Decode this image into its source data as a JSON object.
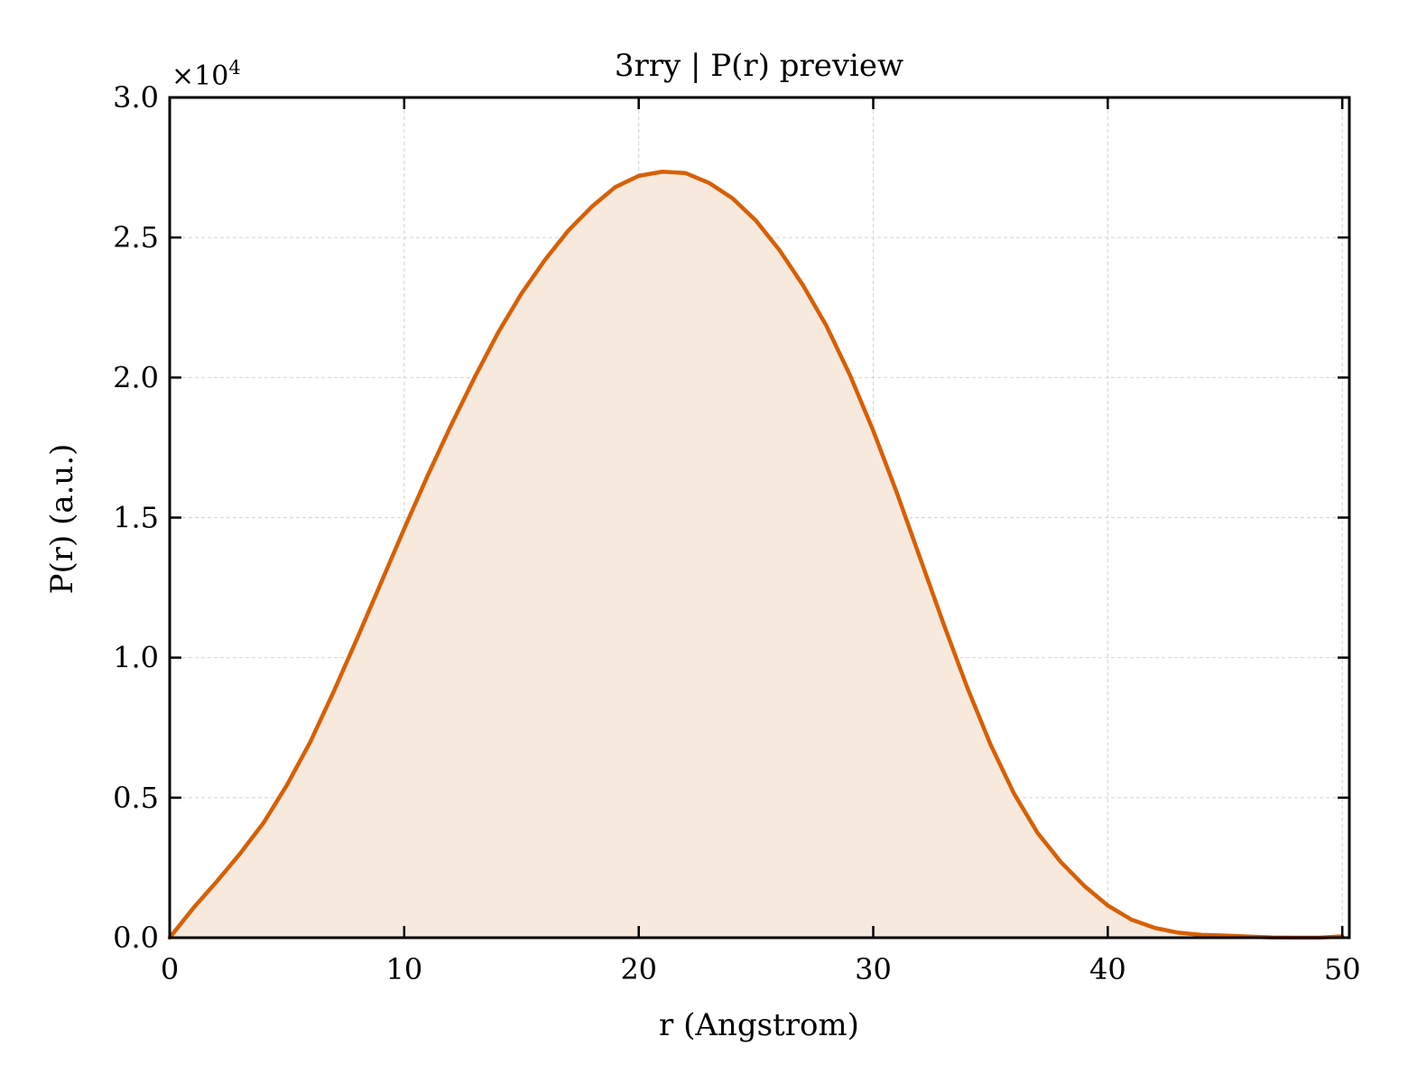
{
  "chart_data": {
    "type": "area",
    "title": "3rry | P(r) preview",
    "xlabel": "r (Angstrom)",
    "ylabel": "P(r) (a.u.)",
    "y_multiplier": "×10",
    "y_multiplier_exponent": "4",
    "xlim": [
      0,
      50.3
    ],
    "ylim": [
      0,
      30000
    ],
    "xticks": [
      0,
      10,
      20,
      30,
      40,
      50
    ],
    "xtick_labels": [
      "0",
      "10",
      "20",
      "30",
      "40",
      "50"
    ],
    "yticks": [
      0,
      5000,
      10000,
      15000,
      20000,
      25000,
      30000
    ],
    "ytick_labels": [
      "0.0",
      "0.5",
      "1.0",
      "1.5",
      "2.0",
      "2.5",
      "3.0"
    ],
    "grid": true,
    "line_color": "#d95f02",
    "fill_color": "#f8e9df",
    "series": [
      {
        "x": [
          0,
          1,
          2,
          3,
          4,
          5,
          6,
          7,
          8,
          9,
          10,
          11,
          12,
          13,
          14,
          15,
          16,
          17,
          18,
          19,
          20,
          21,
          22,
          23,
          24,
          25,
          26,
          27,
          28,
          29,
          30,
          31,
          32,
          33,
          34,
          35,
          36,
          37,
          38,
          39,
          40,
          41,
          42,
          43,
          44,
          45,
          46,
          47,
          48,
          49,
          50
        ],
        "y": [
          0,
          1050,
          2000,
          3000,
          4100,
          5450,
          7000,
          8800,
          10700,
          12650,
          14600,
          16500,
          18300,
          20000,
          21600,
          23000,
          24200,
          25250,
          26100,
          26800,
          27200,
          27350,
          27300,
          26950,
          26400,
          25600,
          24550,
          23300,
          21850,
          20100,
          18100,
          15900,
          13550,
          11200,
          8950,
          6900,
          5150,
          3750,
          2700,
          1850,
          1150,
          650,
          350,
          180,
          100,
          75,
          40,
          10,
          0,
          0,
          50
        ]
      }
    ]
  }
}
